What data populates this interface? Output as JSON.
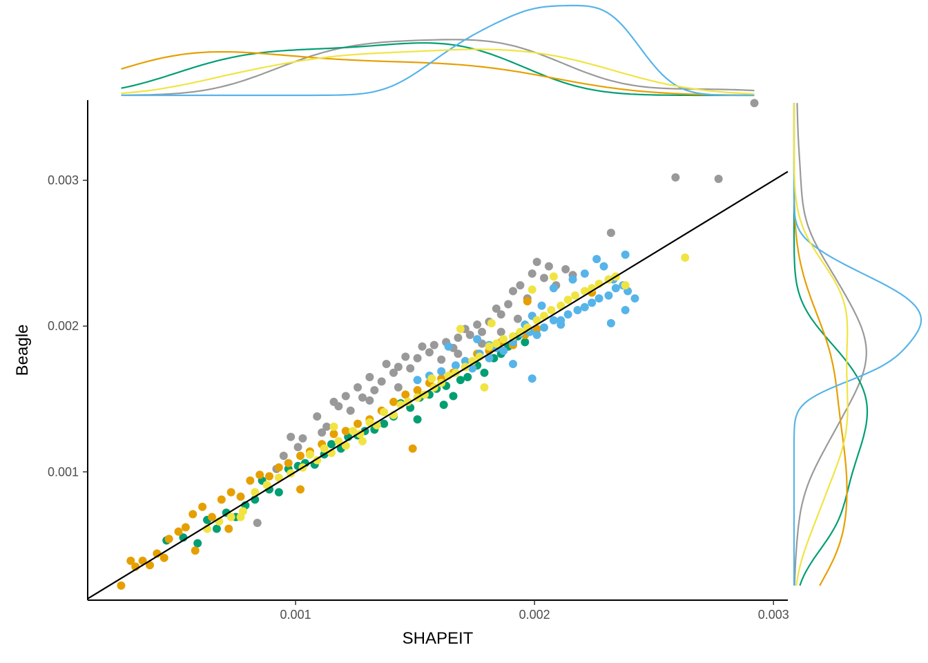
{
  "chart_data": {
    "type": "scatter",
    "title": "",
    "xlabel": "SHAPEIT",
    "ylabel": "Beagle",
    "xlim": [
      0.00013,
      0.00306
    ],
    "ylim": [
      0.00012,
      0.00355
    ],
    "x_ticks": [
      {
        "value": 0.001,
        "label": "0.001"
      },
      {
        "value": 0.002,
        "label": "0.002"
      },
      {
        "value": 0.003,
        "label": "0.003"
      }
    ],
    "y_ticks": [
      {
        "value": 0.001,
        "label": "0.001"
      },
      {
        "value": 0.002,
        "label": "0.002"
      },
      {
        "value": 0.003,
        "label": "0.003"
      }
    ],
    "grid": false,
    "legend": "none",
    "reference_line": {
      "slope": 1.0,
      "intercept": 0.0,
      "color": "#000000"
    },
    "marginal_density": {
      "top": true,
      "right": true
    },
    "series": [
      {
        "color": "#999999",
        "points": [
          [
            0.00084,
            0.00065
          ],
          [
            0.00092,
            0.00102
          ],
          [
            0.00095,
            0.00111
          ],
          [
            0.00098,
            0.00124
          ],
          [
            0.00101,
            0.00117
          ],
          [
            0.00103,
            0.00123
          ],
          [
            0.00106,
            0.00112
          ],
          [
            0.00109,
            0.00138
          ],
          [
            0.00111,
            0.00127
          ],
          [
            0.00113,
            0.00131
          ],
          [
            0.00116,
            0.00148
          ],
          [
            0.00118,
            0.00145
          ],
          [
            0.00121,
            0.00152
          ],
          [
            0.00123,
            0.00142
          ],
          [
            0.00126,
            0.00158
          ],
          [
            0.00128,
            0.00151
          ],
          [
            0.00131,
            0.00165
          ],
          [
            0.00133,
            0.00156
          ],
          [
            0.00136,
            0.00162
          ],
          [
            0.00138,
            0.00174
          ],
          [
            0.00141,
            0.00168
          ],
          [
            0.00143,
            0.00172
          ],
          [
            0.00146,
            0.00179
          ],
          [
            0.00148,
            0.00171
          ],
          [
            0.00151,
            0.00178
          ],
          [
            0.00153,
            0.00186
          ],
          [
            0.00156,
            0.00182
          ],
          [
            0.00158,
            0.00187
          ],
          [
            0.00161,
            0.00177
          ],
          [
            0.00163,
            0.00189
          ],
          [
            0.00166,
            0.00185
          ],
          [
            0.00168,
            0.00192
          ],
          [
            0.00171,
            0.00198
          ],
          [
            0.00173,
            0.00194
          ],
          [
            0.00176,
            0.00201
          ],
          [
            0.00178,
            0.00196
          ],
          [
            0.00181,
            0.00203
          ],
          [
            0.00184,
            0.00212
          ],
          [
            0.00186,
            0.00208
          ],
          [
            0.00189,
            0.00215
          ],
          [
            0.00191,
            0.00224
          ],
          [
            0.00194,
            0.00228
          ],
          [
            0.00197,
            0.00219
          ],
          [
            0.00199,
            0.00236
          ],
          [
            0.00201,
            0.00244
          ],
          [
            0.00204,
            0.00233
          ],
          [
            0.00206,
            0.00241
          ],
          [
            0.00209,
            0.00228
          ],
          [
            0.00213,
            0.00239
          ],
          [
            0.00216,
            0.00235
          ],
          [
            0.00131,
            0.00149
          ],
          [
            0.00143,
            0.00158
          ],
          [
            0.00168,
            0.00181
          ],
          [
            0.00178,
            0.00188
          ],
          [
            0.00186,
            0.00196
          ],
          [
            0.00193,
            0.00205
          ],
          [
            0.00232,
            0.00264
          ],
          [
            0.00259,
            0.00302
          ],
          [
            0.00277,
            0.00301
          ],
          [
            0.00292,
            0.00353
          ]
        ]
      },
      {
        "color": "#009E73",
        "points": [
          [
            0.00046,
            0.00053
          ],
          [
            0.00053,
            0.00055
          ],
          [
            0.00059,
            0.00051
          ],
          [
            0.00063,
            0.00067
          ],
          [
            0.00067,
            0.00061
          ],
          [
            0.00071,
            0.00072
          ],
          [
            0.00075,
            0.00069
          ],
          [
            0.00079,
            0.00077
          ],
          [
            0.00083,
            0.00081
          ],
          [
            0.00086,
            0.00094
          ],
          [
            0.00089,
            0.00088
          ],
          [
            0.00093,
            0.00086
          ],
          [
            0.00097,
            0.00102
          ],
          [
            0.00101,
            0.00104
          ],
          [
            0.00104,
            0.00106
          ],
          [
            0.00108,
            0.00105
          ],
          [
            0.00112,
            0.00112
          ],
          [
            0.00115,
            0.00119
          ],
          [
            0.00119,
            0.00116
          ],
          [
            0.00122,
            0.00124
          ],
          [
            0.00126,
            0.00125
          ],
          [
            0.00129,
            0.00128
          ],
          [
            0.00133,
            0.00129
          ],
          [
            0.00137,
            0.00133
          ],
          [
            0.00141,
            0.00138
          ],
          [
            0.00144,
            0.00147
          ],
          [
            0.00148,
            0.00144
          ],
          [
            0.00152,
            0.00151
          ],
          [
            0.00156,
            0.00153
          ],
          [
            0.00159,
            0.00157
          ],
          [
            0.00163,
            0.00159
          ],
          [
            0.00166,
            0.00152
          ],
          [
            0.00169,
            0.00163
          ],
          [
            0.00172,
            0.00165
          ],
          [
            0.00176,
            0.00173
          ],
          [
            0.00179,
            0.00168
          ],
          [
            0.00183,
            0.00178
          ],
          [
            0.00186,
            0.00181
          ],
          [
            0.00189,
            0.00186
          ],
          [
            0.00193,
            0.00193
          ],
          [
            0.00196,
            0.00189
          ],
          [
            0.00162,
            0.00146
          ],
          [
            0.00151,
            0.00136
          ]
        ]
      },
      {
        "color": "#E69F00",
        "points": [
          [
            0.00027,
            0.00022
          ],
          [
            0.00031,
            0.00039
          ],
          [
            0.00033,
            0.00035
          ],
          [
            0.00036,
            0.00039
          ],
          [
            0.00039,
            0.00036
          ],
          [
            0.00042,
            0.00044
          ],
          [
            0.00045,
            0.00041
          ],
          [
            0.00047,
            0.00054
          ],
          [
            0.00051,
            0.00059
          ],
          [
            0.00054,
            0.00062
          ],
          [
            0.00057,
            0.00071
          ],
          [
            0.00061,
            0.00076
          ],
          [
            0.00065,
            0.00069
          ],
          [
            0.00069,
            0.00081
          ],
          [
            0.00073,
            0.00086
          ],
          [
            0.00077,
            0.00083
          ],
          [
            0.00081,
            0.00094
          ],
          [
            0.00085,
            0.00098
          ],
          [
            0.00089,
            0.00097
          ],
          [
            0.00093,
            0.00103
          ],
          [
            0.00097,
            0.00106
          ],
          [
            0.00102,
            0.00111
          ],
          [
            0.00106,
            0.00114
          ],
          [
            0.00111,
            0.00119
          ],
          [
            0.00116,
            0.00126
          ],
          [
            0.00121,
            0.00128
          ],
          [
            0.00126,
            0.00133
          ],
          [
            0.00131,
            0.00136
          ],
          [
            0.00136,
            0.00142
          ],
          [
            0.00141,
            0.00148
          ],
          [
            0.00146,
            0.00153
          ],
          [
            0.00151,
            0.00156
          ],
          [
            0.00156,
            0.00161
          ],
          [
            0.00161,
            0.00164
          ],
          [
            0.00166,
            0.00168
          ],
          [
            0.00171,
            0.00172
          ],
          [
            0.00176,
            0.00181
          ],
          [
            0.00181,
            0.00183
          ],
          [
            0.00186,
            0.00189
          ],
          [
            0.00191,
            0.00187
          ],
          [
            0.00196,
            0.00194
          ],
          [
            0.00201,
            0.00198
          ],
          [
            0.00149,
            0.00116
          ],
          [
            0.00102,
            0.00088
          ],
          [
            0.00058,
            0.00046
          ],
          [
            0.00072,
            0.00061
          ],
          [
            0.00197,
            0.00217
          ],
          [
            0.00224,
            0.00223
          ]
        ]
      },
      {
        "color": "#56B4E9",
        "points": [
          [
            0.00151,
            0.00163
          ],
          [
            0.00156,
            0.00166
          ],
          [
            0.00161,
            0.00169
          ],
          [
            0.00164,
            0.00186
          ],
          [
            0.00167,
            0.00173
          ],
          [
            0.00171,
            0.00176
          ],
          [
            0.00174,
            0.00171
          ],
          [
            0.00177,
            0.00181
          ],
          [
            0.00181,
            0.00178
          ],
          [
            0.00184,
            0.00185
          ],
          [
            0.00187,
            0.00183
          ],
          [
            0.00191,
            0.00189
          ],
          [
            0.00194,
            0.00195
          ],
          [
            0.00198,
            0.00196
          ],
          [
            0.00201,
            0.00194
          ],
          [
            0.00204,
            0.00199
          ],
          [
            0.00208,
            0.00204
          ],
          [
            0.00211,
            0.00201
          ],
          [
            0.00214,
            0.00208
          ],
          [
            0.00218,
            0.00211
          ],
          [
            0.00221,
            0.00213
          ],
          [
            0.00224,
            0.00216
          ],
          [
            0.00227,
            0.00219
          ],
          [
            0.00231,
            0.00221
          ],
          [
            0.00234,
            0.00226
          ],
          [
            0.00237,
            0.00228
          ],
          [
            0.00239,
            0.00224
          ],
          [
            0.00242,
            0.00219
          ],
          [
            0.00238,
            0.00249
          ],
          [
            0.00233,
            0.00232
          ],
          [
            0.00229,
            0.00241
          ],
          [
            0.00226,
            0.00246
          ],
          [
            0.00221,
            0.00236
          ],
          [
            0.00216,
            0.00232
          ],
          [
            0.00208,
            0.00226
          ],
          [
            0.00203,
            0.00214
          ],
          [
            0.00199,
            0.00207
          ],
          [
            0.00196,
            0.00201
          ],
          [
            0.00199,
            0.00164
          ],
          [
            0.00238,
            0.00211
          ],
          [
            0.00232,
            0.00202
          ],
          [
            0.00211,
            0.00204
          ],
          [
            0.00191,
            0.00174
          ],
          [
            0.00181,
            0.00187
          ],
          [
            0.00176,
            0.00191
          ]
        ]
      },
      {
        "color": "#F0E442",
        "points": [
          [
            0.00063,
            0.00061
          ],
          [
            0.00068,
            0.00066
          ],
          [
            0.00073,
            0.00069
          ],
          [
            0.00078,
            0.00073
          ],
          [
            0.00083,
            0.00086
          ],
          [
            0.00088,
            0.00091
          ],
          [
            0.00093,
            0.00096
          ],
          [
            0.00098,
            0.00099
          ],
          [
            0.00103,
            0.00103
          ],
          [
            0.00106,
            0.00112
          ],
          [
            0.00109,
            0.00108
          ],
          [
            0.00112,
            0.00116
          ],
          [
            0.00115,
            0.00113
          ],
          [
            0.00118,
            0.00121
          ],
          [
            0.00121,
            0.00118
          ],
          [
            0.00124,
            0.00128
          ],
          [
            0.00127,
            0.00126
          ],
          [
            0.00131,
            0.00134
          ],
          [
            0.00134,
            0.00132
          ],
          [
            0.00137,
            0.00141
          ],
          [
            0.00141,
            0.00139
          ],
          [
            0.00144,
            0.00146
          ],
          [
            0.00147,
            0.00148
          ],
          [
            0.00151,
            0.00151
          ],
          [
            0.00154,
            0.00153
          ],
          [
            0.00158,
            0.00158
          ],
          [
            0.00161,
            0.00161
          ],
          [
            0.00164,
            0.00166
          ],
          [
            0.00167,
            0.00168
          ],
          [
            0.00171,
            0.00172
          ],
          [
            0.00174,
            0.00176
          ],
          [
            0.00177,
            0.00179
          ],
          [
            0.00181,
            0.00186
          ],
          [
            0.00184,
            0.00188
          ],
          [
            0.00187,
            0.00191
          ],
          [
            0.00191,
            0.00193
          ],
          [
            0.00194,
            0.00196
          ],
          [
            0.00197,
            0.00199
          ],
          [
            0.00201,
            0.00204
          ],
          [
            0.00204,
            0.00207
          ],
          [
            0.00207,
            0.00211
          ],
          [
            0.00211,
            0.00214
          ],
          [
            0.00214,
            0.00218
          ],
          [
            0.00217,
            0.00221
          ],
          [
            0.00221,
            0.00224
          ],
          [
            0.00224,
            0.00226
          ],
          [
            0.00227,
            0.00229
          ],
          [
            0.00231,
            0.00232
          ],
          [
            0.00234,
            0.00234
          ],
          [
            0.00238,
            0.00228
          ],
          [
            0.00263,
            0.00247
          ],
          [
            0.00208,
            0.00234
          ],
          [
            0.00199,
            0.00225
          ],
          [
            0.00182,
            0.00202
          ],
          [
            0.00179,
            0.00158
          ],
          [
            0.00116,
            0.00131
          ],
          [
            0.00128,
            0.00121
          ],
          [
            0.00157,
            0.00164
          ],
          [
            0.00169,
            0.00198
          ],
          [
            0.00077,
            0.00069
          ]
        ]
      }
    ]
  }
}
